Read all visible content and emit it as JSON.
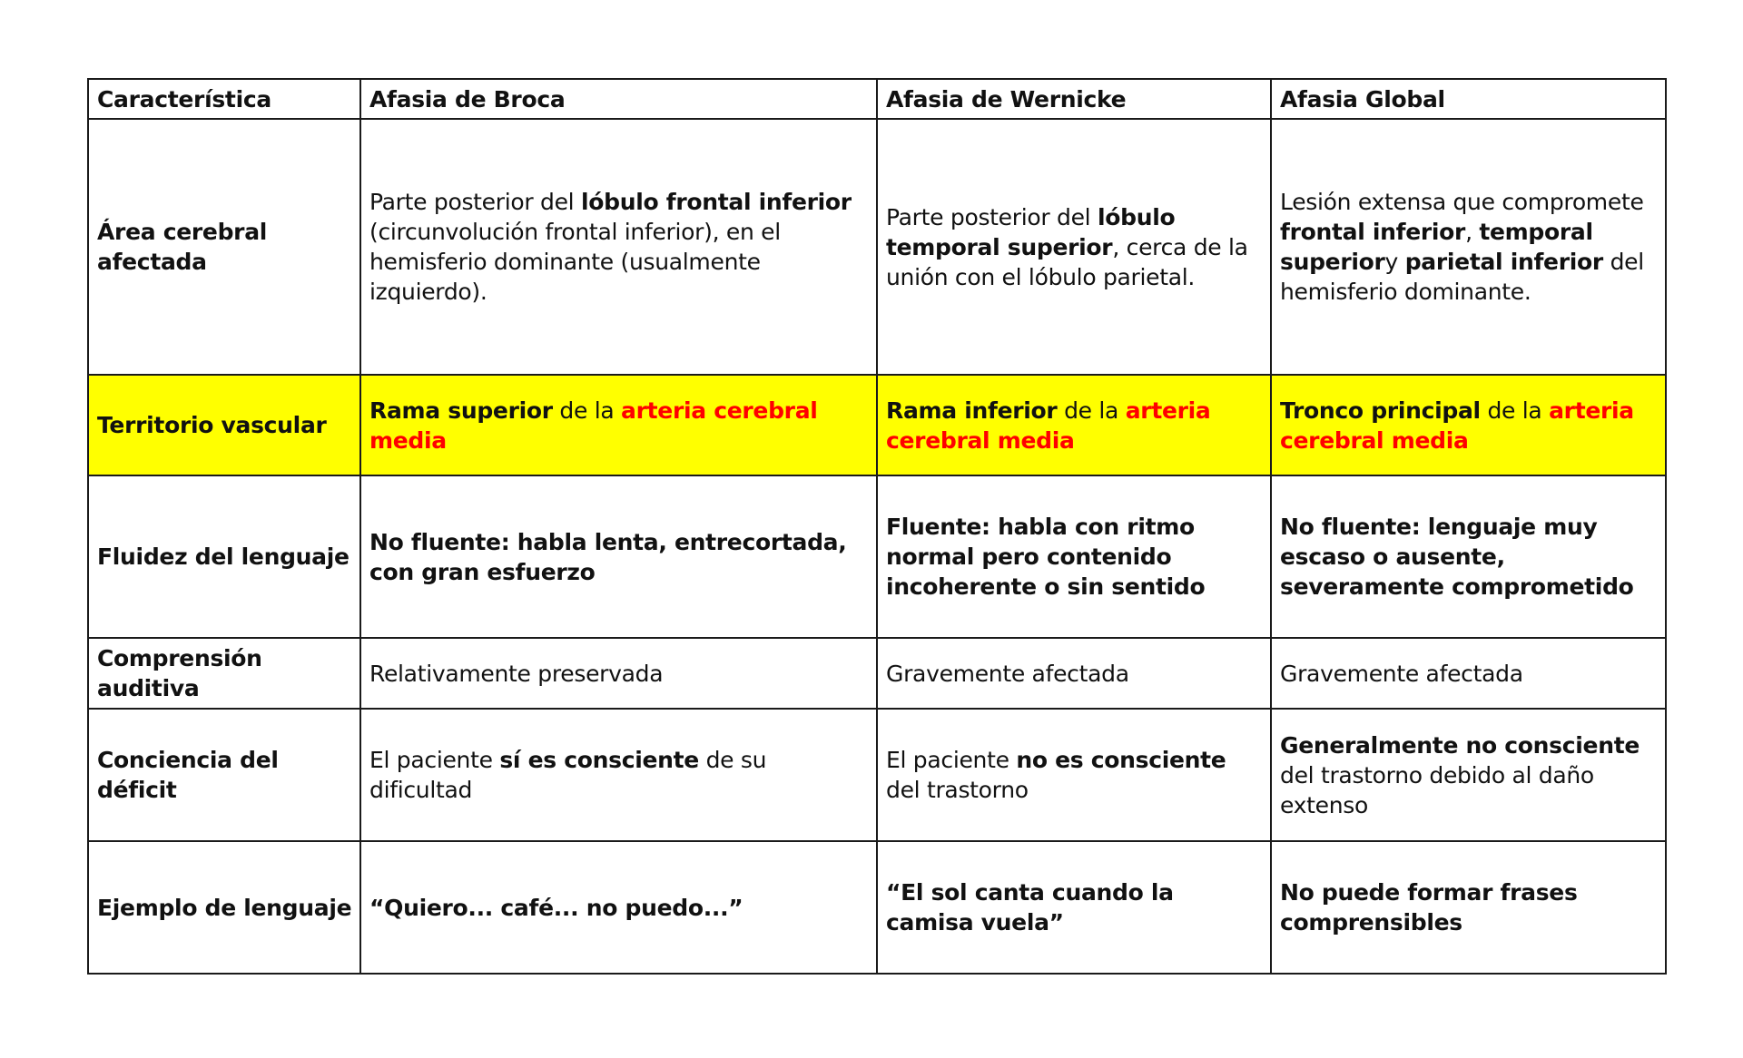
{
  "headers": [
    "Característica",
    "Afasia de Broca",
    "Afasia de Wernicke",
    "Afasia Global"
  ],
  "colors": {
    "highlight_row": "#ffff00",
    "red_text": "#ff0000"
  },
  "rows": [
    {
      "label": "Área cerebral afectada",
      "highlight": false,
      "cells": [
        [
          {
            "t": "Parte posterior del "
          },
          {
            "t": "lóbulo frontal inferior",
            "b": true
          },
          {
            "t": " (circunvolución frontal inferior), en el hemisferio dominante (usualmente izquierdo)."
          }
        ],
        [
          {
            "t": "Parte posterior del "
          },
          {
            "t": "lóbulo temporal superior",
            "b": true
          },
          {
            "t": ", cerca de la unión con el lóbulo parietal."
          }
        ],
        [
          {
            "t": "Lesión extensa que compromete "
          },
          {
            "t": "frontal inferior",
            "b": true
          },
          {
            "t": ", "
          },
          {
            "t": "temporal superior",
            "b": true
          },
          {
            "t": "y "
          },
          {
            "t": "parietal inferior",
            "b": true
          },
          {
            "t": " del hemisferio dominante."
          }
        ]
      ]
    },
    {
      "label": "Territorio vascular",
      "highlight": true,
      "cells": [
        [
          {
            "t": "Rama superior",
            "b": true
          },
          {
            "t": " de la "
          },
          {
            "t": "arteria cerebral media",
            "b": true,
            "r": true
          }
        ],
        [
          {
            "t": "Rama inferior",
            "b": true
          },
          {
            "t": " de la "
          },
          {
            "t": "arteria cerebral media",
            "b": true,
            "r": true
          }
        ],
        [
          {
            "t": "Tronco principal",
            "b": true
          },
          {
            "t": " de la "
          },
          {
            "t": "arteria cerebral media",
            "b": true,
            "r": true
          }
        ]
      ]
    },
    {
      "label": "Fluidez del lenguaje",
      "highlight": false,
      "cells": [
        [
          {
            "t": "No fluente: habla lenta, entrecortada, con gran esfuerzo",
            "b": true
          }
        ],
        [
          {
            "t": "Fluente: habla con ritmo normal pero contenido incoherente o sin sentido",
            "b": true
          }
        ],
        [
          {
            "t": "No fluente: lenguaje muy escaso o ausente, severamente comprometido",
            "b": true
          }
        ]
      ]
    },
    {
      "label": "Comprensión auditiva",
      "highlight": false,
      "cells": [
        [
          {
            "t": "Relativamente preservada"
          }
        ],
        [
          {
            "t": "Gravemente afectada"
          }
        ],
        [
          {
            "t": "Gravemente afectada"
          }
        ]
      ]
    },
    {
      "label": "Conciencia del déficit",
      "highlight": false,
      "cells": [
        [
          {
            "t": "El paciente "
          },
          {
            "t": "sí es consciente",
            "b": true
          },
          {
            "t": " de su dificultad"
          }
        ],
        [
          {
            "t": "El paciente "
          },
          {
            "t": "no es consciente",
            "b": true
          },
          {
            "t": " del trastorno"
          }
        ],
        [
          {
            "t": "Generalmente no consciente",
            "b": true
          },
          {
            "t": " del trastorno debido al daño extenso"
          }
        ]
      ]
    },
    {
      "label": "Ejemplo de lenguaje",
      "highlight": false,
      "cells": [
        [
          {
            "t": "“Quiero... café... no puedo...”",
            "b": true
          }
        ],
        [
          {
            "t": "“El sol canta cuando la camisa vuela”",
            "b": true
          }
        ],
        [
          {
            "t": "No puede formar frases comprensibles",
            "b": true
          }
        ]
      ]
    }
  ]
}
